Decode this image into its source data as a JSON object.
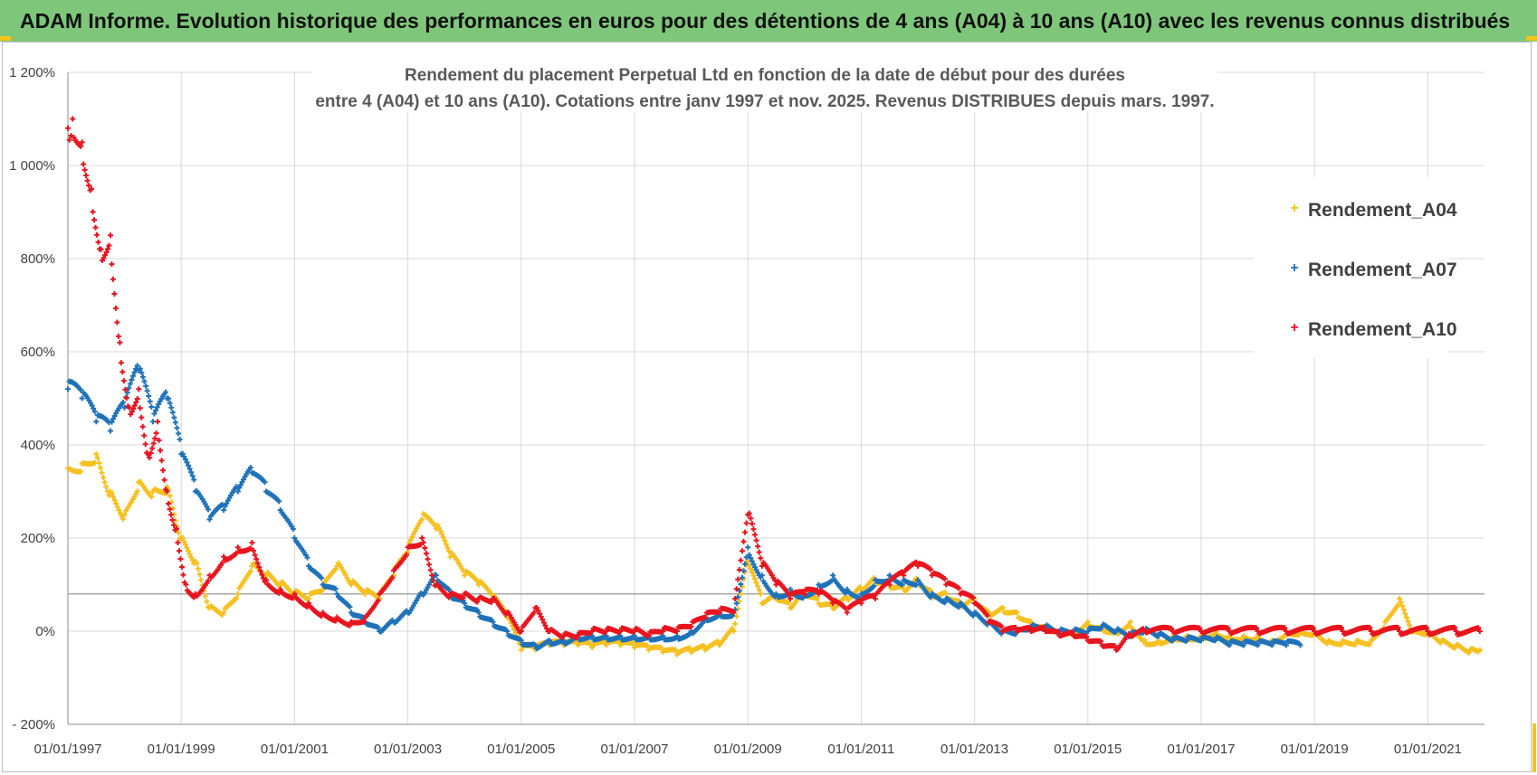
{
  "header": {
    "banner_title": "ADAM Informe. Evolution historique des performances en euros pour des détentions de 4 ans (A04) à 10 ans (A10) avec les revenus connus distribués"
  },
  "colors": {
    "banner_bg": "#7ec77a",
    "A04": "#f5c021",
    "A07": "#1f72b8",
    "A10": "#e8141e",
    "reference_line": "#a6a6a6",
    "gridline": "#d9d9d9"
  },
  "chart_data": {
    "type": "scatter",
    "title_lines": [
      "Rendement du placement Perpetual Ltd en fonction de la date de début pour des durées",
      "entre 4 (A04) et 10 ans (A10). Cotations entre janv 1997 et nov. 2025. Revenus DISTRIBUES depuis mars. 1997."
    ],
    "xlabel": "",
    "ylabel": "",
    "x_range": [
      "1997-01-01",
      "2022-01-01"
    ],
    "xtick_labels": [
      "01/01/1997",
      "01/01/1999",
      "01/01/2001",
      "01/01/2003",
      "01/01/2005",
      "01/01/2007",
      "01/01/2009",
      "01/01/2011",
      "01/01/2013",
      "01/01/2015",
      "01/01/2017",
      "01/01/2019",
      "01/01/2021"
    ],
    "ylim": [
      -200,
      1200
    ],
    "ytick_values": [
      -200,
      0,
      200,
      400,
      600,
      800,
      1000,
      1200
    ],
    "ytick_labels": [
      "- 200%",
      "0%",
      "200%",
      "400%",
      "600%",
      "800%",
      "1 000%",
      "1 200%"
    ],
    "reference_line_y": 80,
    "grid": true,
    "legend": "right",
    "series": [
      {
        "name": "Rendement_A04",
        "color": "#f5c021",
        "x": [
          "1997-01",
          "1997-04",
          "1997-07",
          "1997-10",
          "1998-01",
          "1998-04",
          "1998-07",
          "1998-10",
          "1999-01",
          "1999-04",
          "1999-07",
          "1999-10",
          "2000-01",
          "2000-04",
          "2000-07",
          "2000-10",
          "2001-01",
          "2001-04",
          "2001-07",
          "2001-10",
          "2002-01",
          "2002-04",
          "2002-07",
          "2002-10",
          "2003-01",
          "2003-04",
          "2003-07",
          "2003-10",
          "2004-01",
          "2004-04",
          "2004-07",
          "2004-10",
          "2005-01",
          "2005-04",
          "2005-07",
          "2005-10",
          "2006-01",
          "2006-04",
          "2006-07",
          "2006-10",
          "2007-01",
          "2007-04",
          "2007-07",
          "2007-10",
          "2008-01",
          "2008-04",
          "2008-07",
          "2008-10",
          "2009-01",
          "2009-04",
          "2009-07",
          "2009-10",
          "2010-01",
          "2010-04",
          "2010-07",
          "2010-10",
          "2011-01",
          "2011-04",
          "2011-07",
          "2011-10",
          "2012-01",
          "2012-04",
          "2012-07",
          "2012-10",
          "2013-01",
          "2013-04",
          "2013-07",
          "2013-10",
          "2014-01",
          "2014-04",
          "2014-07",
          "2014-10",
          "2015-01",
          "2015-04",
          "2015-07",
          "2015-10",
          "2016-01",
          "2016-04",
          "2016-07",
          "2016-10",
          "2017-01",
          "2017-04",
          "2017-07",
          "2017-10",
          "2018-01",
          "2018-04",
          "2018-07",
          "2018-10",
          "2019-01",
          "2019-04",
          "2019-07",
          "2019-10",
          "2020-01",
          "2020-04",
          "2020-07",
          "2020-10",
          "2021-01",
          "2021-04",
          "2021-07",
          "2021-10",
          "2021-12"
        ],
        "y": [
          350,
          360,
          380,
          300,
          250,
          320,
          300,
          310,
          200,
          150,
          50,
          40,
          80,
          140,
          120,
          100,
          80,
          70,
          90,
          140,
          100,
          80,
          70,
          120,
          170,
          240,
          220,
          160,
          120,
          100,
          70,
          30,
          -40,
          -40,
          -30,
          -30,
          -30,
          -35,
          -30,
          -30,
          -35,
          -40,
          -45,
          -50,
          -45,
          -40,
          -30,
          0,
          150,
          60,
          70,
          50,
          80,
          60,
          50,
          70,
          90,
          110,
          100,
          90,
          110,
          80,
          80,
          60,
          70,
          40,
          50,
          40,
          20,
          10,
          0,
          0,
          20,
          10,
          0,
          20,
          -20,
          -20,
          -10,
          -10,
          -10,
          0,
          -10,
          -10,
          -10,
          -20,
          0,
          0,
          0,
          -20,
          -20,
          -20,
          -20,
          20,
          70,
          0,
          0,
          -20,
          -30,
          -40,
          -40
        ]
      },
      {
        "name": "Rendement_A07",
        "color": "#1f72b8",
        "x": [
          "1997-01",
          "1997-04",
          "1997-07",
          "1997-10",
          "1998-01",
          "1998-04",
          "1998-07",
          "1998-10",
          "1999-01",
          "1999-04",
          "1999-07",
          "1999-10",
          "2000-01",
          "2000-04",
          "2000-07",
          "2000-10",
          "2001-01",
          "2001-04",
          "2001-07",
          "2001-10",
          "2002-01",
          "2002-04",
          "2002-07",
          "2002-10",
          "2003-01",
          "2003-04",
          "2003-07",
          "2003-10",
          "2004-01",
          "2004-04",
          "2004-07",
          "2004-10",
          "2005-01",
          "2005-04",
          "2005-07",
          "2005-10",
          "2006-01",
          "2006-04",
          "2006-07",
          "2006-10",
          "2007-01",
          "2007-04",
          "2007-07",
          "2007-10",
          "2008-01",
          "2008-04",
          "2008-07",
          "2008-10",
          "2009-01",
          "2009-04",
          "2009-07",
          "2009-10",
          "2010-01",
          "2010-04",
          "2010-07",
          "2010-10",
          "2011-01",
          "2011-04",
          "2011-07",
          "2011-10",
          "2012-01",
          "2012-04",
          "2012-07",
          "2012-10",
          "2013-01",
          "2013-04",
          "2013-07",
          "2013-10",
          "2014-01",
          "2014-04",
          "2014-07",
          "2014-10",
          "2015-01",
          "2015-04",
          "2015-07",
          "2015-10",
          "2016-01",
          "2016-04",
          "2016-07",
          "2016-10",
          "2017-01",
          "2017-04",
          "2017-07",
          "2017-10",
          "2018-01",
          "2018-04",
          "2018-07",
          "2018-10"
        ],
        "y": [
          520,
          500,
          450,
          430,
          480,
          560,
          450,
          500,
          380,
          300,
          240,
          260,
          300,
          340,
          300,
          260,
          200,
          140,
          100,
          80,
          40,
          20,
          0,
          20,
          40,
          80,
          120,
          80,
          60,
          40,
          20,
          0,
          -20,
          -30,
          -20,
          -20,
          -10,
          -10,
          -10,
          -10,
          -10,
          -10,
          -10,
          -10,
          0,
          30,
          40,
          40,
          180,
          120,
          80,
          90,
          80,
          100,
          120,
          90,
          80,
          110,
          120,
          110,
          110,
          80,
          70,
          60,
          40,
          20,
          0,
          0,
          10,
          10,
          0,
          0,
          0,
          10,
          0,
          -10,
          0,
          -10,
          -20,
          -20,
          -20,
          -20,
          -30,
          -30,
          -30,
          -30,
          -30,
          -30
        ]
      },
      {
        "name": "Rendement_A10",
        "color": "#e8141e",
        "x": [
          "1997-01",
          "1997-02",
          "1997-04",
          "1997-06",
          "1997-08",
          "1997-10",
          "1997-12",
          "1998-02",
          "1998-04",
          "1998-06",
          "1998-08",
          "1998-10",
          "1998-12",
          "1999-02",
          "1999-04",
          "1999-07",
          "1999-10",
          "2000-01",
          "2000-04",
          "2000-07",
          "2000-10",
          "2001-01",
          "2001-04",
          "2001-07",
          "2001-10",
          "2002-01",
          "2002-04",
          "2002-07",
          "2002-10",
          "2003-01",
          "2003-04",
          "2003-07",
          "2003-10",
          "2004-01",
          "2004-04",
          "2004-07",
          "2004-10",
          "2005-01",
          "2005-04",
          "2005-07",
          "2005-10",
          "2006-01",
          "2006-04",
          "2006-07",
          "2006-10",
          "2007-01",
          "2007-04",
          "2007-07",
          "2007-10",
          "2008-01",
          "2008-04",
          "2008-07",
          "2008-10",
          "2009-01",
          "2009-04",
          "2009-07",
          "2009-10",
          "2010-01",
          "2010-04",
          "2010-07",
          "2010-10",
          "2011-01",
          "2011-04",
          "2011-07",
          "2011-10",
          "2012-01",
          "2012-04",
          "2012-07",
          "2012-10",
          "2013-01",
          "2013-04",
          "2013-07",
          "2013-10",
          "2014-01",
          "2014-04",
          "2014-07",
          "2014-10",
          "2015-01",
          "2015-04",
          "2015-07",
          "2015-10",
          "2016-01",
          "2016-07",
          "2017-01",
          "2017-07",
          "2018-01",
          "2018-07",
          "2019-01",
          "2019-07",
          "2020-01",
          "2020-07",
          "2021-01",
          "2021-07",
          "2021-12"
        ],
        "y": [
          1080,
          1100,
          1050,
          950,
          820,
          850,
          620,
          480,
          520,
          380,
          450,
          300,
          220,
          100,
          80,
          120,
          160,
          180,
          190,
          110,
          90,
          80,
          60,
          40,
          30,
          20,
          30,
          80,
          130,
          180,
          200,
          100,
          80,
          80,
          70,
          70,
          40,
          0,
          50,
          0,
          -10,
          -10,
          0,
          0,
          0,
          0,
          -10,
          0,
          0,
          10,
          30,
          40,
          40,
          250,
          140,
          100,
          70,
          80,
          80,
          60,
          40,
          60,
          70,
          100,
          120,
          140,
          120,
          100,
          80,
          60,
          20,
          0,
          0,
          0,
          0,
          -10,
          -10,
          -20,
          -30,
          -40,
          -10,
          0,
          0,
          0,
          0,
          0,
          0,
          0,
          0,
          0,
          0,
          0,
          0,
          0
        ]
      }
    ]
  }
}
